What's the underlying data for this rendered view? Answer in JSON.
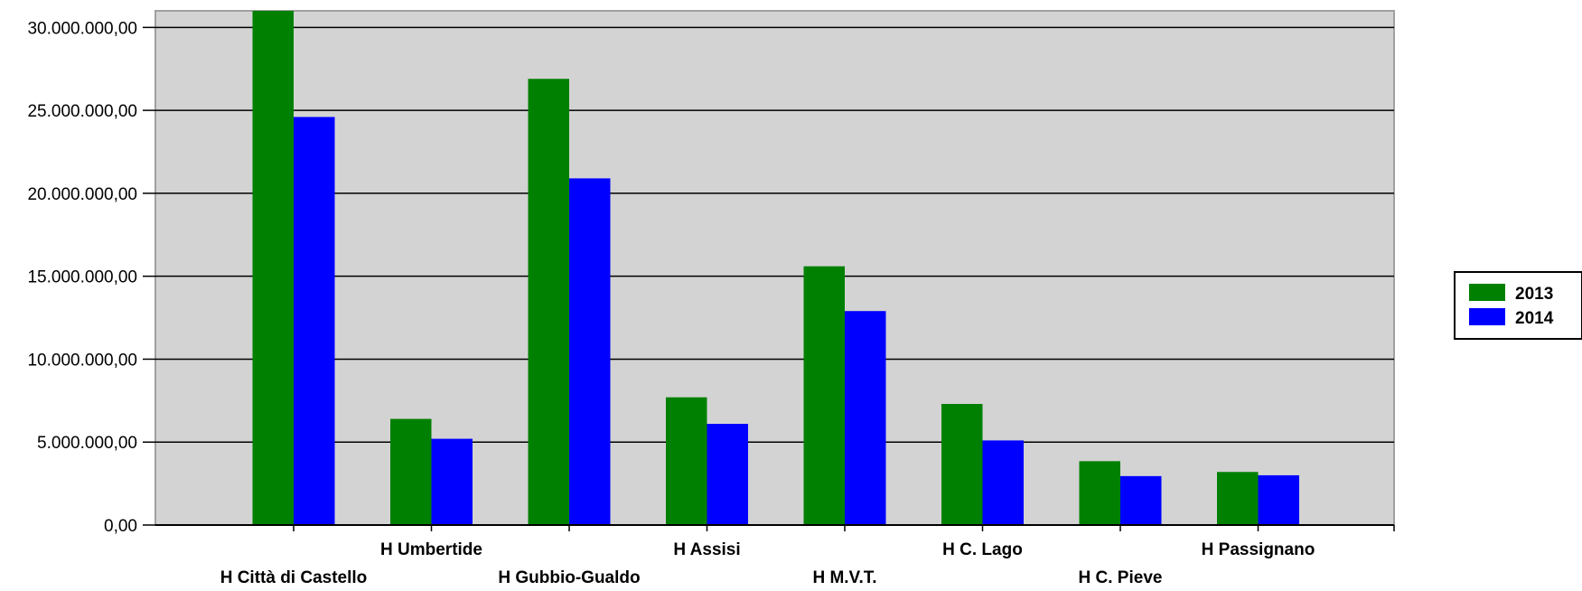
{
  "chart_data": {
    "type": "bar",
    "title": "",
    "xlabel": "",
    "ylabel": "",
    "categories": [
      "H Città di Castello",
      "H Umbertide",
      "H Gubbio-Gualdo",
      "H Assisi",
      "H M.V.T.",
      "H C. Lago",
      "H C. Pieve",
      "H Passignano"
    ],
    "series": [
      {
        "name": "2013",
        "color": "#008000",
        "values": [
          31000000,
          6400000,
          26900000,
          7700000,
          15600000,
          7300000,
          3850000,
          3200000
        ]
      },
      {
        "name": "2014",
        "color": "#0000ff",
        "values": [
          24600000,
          5200000,
          20900000,
          6100000,
          12900000,
          5100000,
          2950000,
          3000000
        ]
      }
    ],
    "ylim": [
      0,
      31000000
    ],
    "yticks": [
      0,
      5000000,
      10000000,
      15000000,
      20000000,
      25000000,
      30000000
    ],
    "ytick_labels": [
      "0,00",
      "5.000.000,00",
      "10.000.000,00",
      "15.000.000,00",
      "20.000.000,00",
      "25.000.000,00",
      "30.000.000,00"
    ],
    "grid": true,
    "plot_background": "#d3d3d3",
    "legend_position": "right"
  }
}
